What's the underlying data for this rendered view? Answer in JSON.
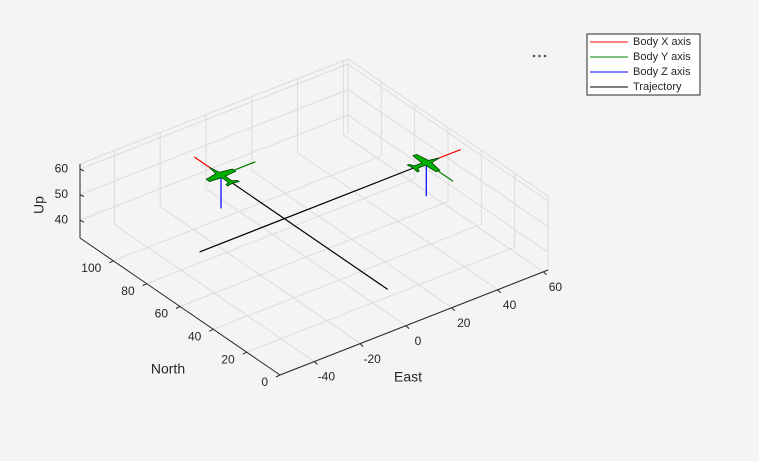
{
  "chart_data": {
    "type": "line3d",
    "xlabel": "East",
    "ylabel": "North",
    "zlabel": "Up",
    "xlim": [
      -55,
      62
    ],
    "ylim": [
      0,
      120
    ],
    "zlim": [
      33,
      62
    ],
    "xticks": [
      -40,
      -20,
      0,
      20,
      40,
      60
    ],
    "yticks": [
      0,
      20,
      40,
      60,
      80,
      100
    ],
    "zticks": [
      40,
      50,
      60
    ],
    "grid": true,
    "legend_position": "northeast",
    "series": [
      {
        "name": "Body X axis",
        "color": "#ff0000",
        "x": [
          -8,
          -8,
          null,
          54,
          69
        ],
        "y": [
          100,
          116,
          null,
          62,
          62
        ],
        "z": [
          50,
          50,
          null,
          50,
          50
        ]
      },
      {
        "name": "Body Y axis",
        "color": "#008000",
        "x": [
          -8,
          7,
          null,
          54,
          54
        ],
        "y": [
          100,
          100,
          null,
          62,
          46
        ],
        "z": [
          50,
          50,
          null,
          50,
          50
        ]
      },
      {
        "name": "Body Z axis",
        "color": "#0000ff",
        "x": [
          -8,
          -8,
          null,
          54,
          54
        ],
        "y": [
          100,
          100,
          null,
          62,
          62
        ],
        "z": [
          50,
          37,
          null,
          50,
          37
        ]
      },
      {
        "name": "Trajectory",
        "color": "#000000",
        "x": [
          -8,
          -8,
          null,
          -45,
          54
        ],
        "y": [
          100,
          0,
          null,
          62,
          62
        ],
        "z": [
          50,
          50,
          null,
          50,
          50
        ]
      }
    ]
  }
}
